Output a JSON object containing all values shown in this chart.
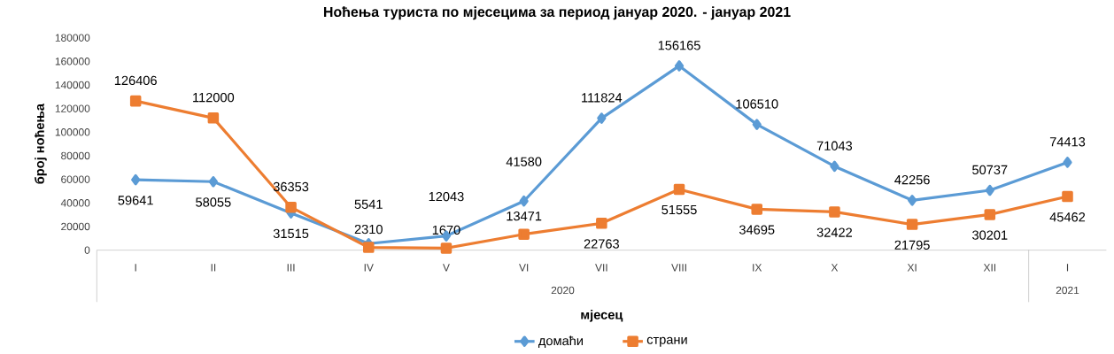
{
  "chart_data": {
    "type": "line",
    "title": "Ноћења туриста по мјесецима за период јануар 2020. - јануар 2021",
    "xlabel": "мјесец",
    "ylabel": "број ноћења",
    "categories": [
      "I",
      "II",
      "III",
      "IV",
      "V",
      "VI",
      "VII",
      "VIII",
      "IX",
      "X",
      "XI",
      "XII",
      "I"
    ],
    "series": [
      {
        "name": "домаћи",
        "color": "#5b9bd5",
        "marker": "diamond",
        "values": [
          59641,
          58055,
          31515,
          5541,
          12043,
          41580,
          111824,
          156165,
          106510,
          71043,
          42256,
          50737,
          74413
        ]
      },
      {
        "name": "страни",
        "color": "#ed7d31",
        "marker": "square",
        "values": [
          126406,
          112000,
          36353,
          2310,
          1670,
          13471,
          22763,
          51555,
          34695,
          32422,
          21795,
          30201,
          45462
        ]
      }
    ],
    "ylim": [
      0,
      180000
    ],
    "yticks": [
      0,
      20000,
      40000,
      60000,
      80000,
      100000,
      120000,
      140000,
      160000,
      180000
    ],
    "annotations": [
      "2020",
      "2021"
    ],
    "data_labels": true,
    "legend": "bottom",
    "grid": false,
    "line_style": "solid"
  }
}
